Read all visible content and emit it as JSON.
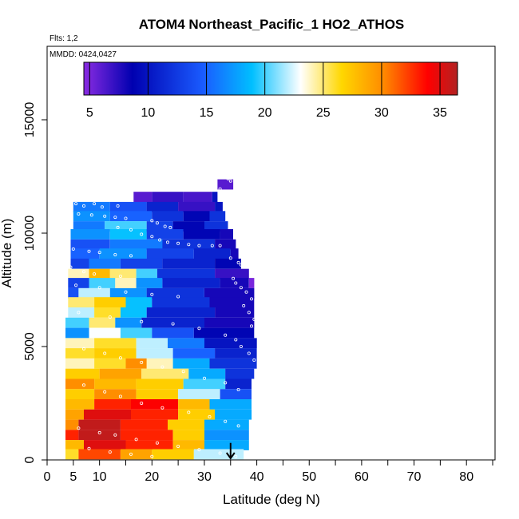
{
  "chart_data": {
    "type": "heatmap",
    "title": "ATOM4 Northeast_Pacific_1 HO2_ATHOS",
    "subtitle_flights": "Flts: 1,2",
    "subtitle_dates": "MMDD: 0424,0427",
    "xlabel": "Latitude (deg N)",
    "ylabel": "Altitude (m)",
    "xlim": [
      0,
      85
    ],
    "ylim": [
      0,
      17500
    ],
    "x_ticks": [
      0,
      5,
      10,
      20,
      30,
      40,
      50,
      60,
      70,
      80
    ],
    "y_ticks": [
      0,
      5000,
      10000,
      15000
    ],
    "x_minor_ticks": [
      15,
      25,
      35,
      45,
      55,
      65,
      75,
      85
    ],
    "colorbar": {
      "min": 4.5,
      "max": 36.5,
      "ticks": [
        5,
        10,
        15,
        20,
        25,
        30,
        35
      ],
      "colors": [
        "#8a2be2",
        "#0000b0",
        "#1a5cff",
        "#00bfff",
        "#ffffff",
        "#ffd700",
        "#ff8c00",
        "#ff0000",
        "#b22222"
      ]
    },
    "annotation": {
      "type": "arrow-down",
      "x": 35,
      "y_from": 750,
      "y_to": 0
    },
    "grid": false,
    "values_unit": "pptv",
    "rows": [
      {
        "alt": 12150,
        "segs": [
          [
            32.5,
            35.5,
            6
          ]
        ]
      },
      {
        "alt": 11600,
        "segs": [
          [
            16.5,
            20,
            6
          ],
          [
            20,
            26,
            7
          ],
          [
            26,
            31.5,
            6.5
          ],
          [
            31.5,
            32.5,
            10
          ]
        ]
      },
      {
        "alt": 11150,
        "segs": [
          [
            5,
            12,
            16
          ],
          [
            12,
            19,
            14
          ],
          [
            19,
            25,
            11
          ],
          [
            25,
            32,
            7
          ],
          [
            32,
            33.5,
            10
          ]
        ]
      },
      {
        "alt": 10750,
        "segs": [
          [
            5,
            12,
            17
          ],
          [
            12,
            20,
            15
          ],
          [
            20,
            26,
            12
          ],
          [
            26,
            31,
            9
          ],
          [
            31,
            34,
            12
          ]
        ]
      },
      {
        "alt": 10300,
        "segs": [
          [
            5,
            11,
            16
          ],
          [
            11,
            19,
            20
          ],
          [
            19,
            24,
            13
          ],
          [
            24,
            30,
            9
          ],
          [
            30,
            34.5,
            12
          ]
        ]
      },
      {
        "alt": 9950,
        "segs": [
          [
            4.5,
            12,
            17
          ],
          [
            12,
            19,
            19
          ],
          [
            19,
            26,
            13
          ],
          [
            26,
            33,
            9
          ],
          [
            33,
            35.5,
            8
          ]
        ]
      },
      {
        "alt": 9500,
        "segs": [
          [
            4.5,
            12,
            14
          ],
          [
            12,
            22,
            16
          ],
          [
            22,
            32,
            12
          ],
          [
            32,
            36,
            8
          ]
        ]
      },
      {
        "alt": 9100,
        "segs": [
          [
            4.5,
            10,
            15
          ],
          [
            10,
            19,
            17
          ],
          [
            19,
            28,
            13
          ],
          [
            28,
            35,
            11
          ],
          [
            35,
            36.5,
            8
          ]
        ]
      },
      {
        "alt": 8650,
        "segs": [
          [
            4.5,
            8,
            13
          ],
          [
            8,
            14,
            16
          ],
          [
            14,
            22,
            13
          ],
          [
            22,
            32,
            11
          ],
          [
            32,
            37,
            9
          ]
        ]
      },
      {
        "alt": 8200,
        "segs": [
          [
            4,
            8,
            24
          ],
          [
            8,
            12,
            28
          ],
          [
            12,
            17,
            25
          ],
          [
            17,
            21,
            20
          ],
          [
            21,
            32,
            12
          ],
          [
            32,
            38.5,
            7
          ]
        ]
      },
      {
        "alt": 7800,
        "segs": [
          [
            4,
            8,
            13
          ],
          [
            8,
            13,
            20
          ],
          [
            13,
            17,
            24
          ],
          [
            17,
            22,
            17
          ],
          [
            22,
            33,
            11
          ],
          [
            33,
            38.5,
            8
          ],
          [
            38.5,
            39.5,
            5
          ]
        ]
      },
      {
        "alt": 7350,
        "segs": [
          [
            4,
            6,
            14
          ],
          [
            6,
            12,
            22
          ],
          [
            12,
            19,
            17
          ],
          [
            19,
            30,
            12
          ],
          [
            30,
            39.5,
            8
          ]
        ]
      },
      {
        "alt": 6950,
        "segs": [
          [
            4,
            9,
            25
          ],
          [
            9,
            15,
            27
          ],
          [
            15,
            20,
            19
          ],
          [
            20,
            31,
            12
          ],
          [
            31,
            39.5,
            8
          ]
        ]
      },
      {
        "alt": 6500,
        "segs": [
          [
            4,
            9,
            22
          ],
          [
            9,
            14,
            26
          ],
          [
            14,
            19,
            19
          ],
          [
            19,
            32,
            11
          ],
          [
            32,
            39.5,
            8
          ]
        ]
      },
      {
        "alt": 6050,
        "segs": [
          [
            3.5,
            8,
            20
          ],
          [
            8,
            13,
            25
          ],
          [
            13,
            18,
            17
          ],
          [
            18,
            30,
            11
          ],
          [
            30,
            39.5,
            8
          ]
        ]
      },
      {
        "alt": 5600,
        "segs": [
          [
            3.5,
            8,
            17
          ],
          [
            8,
            14,
            23
          ],
          [
            14,
            20,
            20
          ],
          [
            20,
            28,
            14
          ],
          [
            28,
            39.5,
            9
          ]
        ]
      },
      {
        "alt": 5150,
        "segs": [
          [
            3.5,
            9,
            24
          ],
          [
            9,
            17,
            26
          ],
          [
            17,
            23,
            22
          ],
          [
            23,
            30,
            16
          ],
          [
            30,
            40,
            10
          ]
        ]
      },
      {
        "alt": 4700,
        "segs": [
          [
            3.5,
            9,
            26
          ],
          [
            9,
            17,
            27
          ],
          [
            17,
            24,
            22
          ],
          [
            24,
            32,
            15
          ],
          [
            32,
            40,
            11
          ]
        ]
      },
      {
        "alt": 4250,
        "segs": [
          [
            3.5,
            9,
            24
          ],
          [
            9,
            15,
            26
          ],
          [
            15,
            19,
            30
          ],
          [
            19,
            24,
            24
          ],
          [
            24,
            31,
            18
          ],
          [
            31,
            40,
            12
          ]
        ]
      },
      {
        "alt": 3800,
        "segs": [
          [
            3.5,
            10,
            27
          ],
          [
            10,
            18,
            29
          ],
          [
            18,
            27,
            25
          ],
          [
            27,
            34,
            18
          ],
          [
            34,
            39.5,
            12
          ]
        ]
      },
      {
        "alt": 3350,
        "segs": [
          [
            3.5,
            9,
            30
          ],
          [
            9,
            17,
            28
          ],
          [
            17,
            26,
            27
          ],
          [
            26,
            34,
            20
          ],
          [
            34,
            39,
            11
          ]
        ]
      },
      {
        "alt": 2900,
        "segs": [
          [
            3.5,
            9,
            27
          ],
          [
            9,
            17,
            30
          ],
          [
            17,
            25,
            27
          ],
          [
            25,
            33,
            22
          ],
          [
            33,
            39,
            14
          ]
        ]
      },
      {
        "alt": 2450,
        "segs": [
          [
            3.5,
            9,
            28
          ],
          [
            9,
            16,
            33
          ],
          [
            16,
            25,
            34
          ],
          [
            25,
            31,
            28
          ],
          [
            31,
            39,
            18
          ]
        ]
      },
      {
        "alt": 2000,
        "segs": [
          [
            3.5,
            7,
            29
          ],
          [
            7,
            16,
            35
          ],
          [
            16,
            25,
            33
          ],
          [
            25,
            32,
            27
          ],
          [
            32,
            39,
            18
          ]
        ]
      },
      {
        "alt": 1550,
        "segs": [
          [
            3.5,
            6,
            30
          ],
          [
            6,
            14,
            36
          ],
          [
            14,
            23,
            33
          ],
          [
            23,
            30,
            27
          ],
          [
            30,
            38.5,
            18
          ]
        ]
      },
      {
        "alt": 1100,
        "segs": [
          [
            3.5,
            6,
            33
          ],
          [
            6,
            14,
            36
          ],
          [
            14,
            24,
            33
          ],
          [
            24,
            30,
            27
          ],
          [
            30,
            38.5,
            17
          ]
        ]
      },
      {
        "alt": 650,
        "segs": [
          [
            3.5,
            7,
            28
          ],
          [
            7,
            15,
            35
          ],
          [
            15,
            24,
            33
          ],
          [
            24,
            30,
            28
          ],
          [
            30,
            38.5,
            18
          ]
        ]
      },
      {
        "alt": 250,
        "segs": [
          [
            3.5,
            6,
            26
          ],
          [
            6,
            14,
            32
          ],
          [
            14,
            20,
            29
          ],
          [
            20,
            28,
            27
          ],
          [
            28,
            37.5,
            22
          ]
        ]
      }
    ],
    "track_points": [
      [
        32.5,
        12450
      ],
      [
        34.5,
        12400
      ],
      [
        35,
        12300
      ],
      [
        33,
        11950
      ],
      [
        35,
        11850
      ],
      [
        36.5,
        11300
      ],
      [
        5.5,
        11300
      ],
      [
        7,
        11200
      ],
      [
        9,
        11300
      ],
      [
        10.5,
        11150
      ],
      [
        13.5,
        11200
      ],
      [
        6,
        10850
      ],
      [
        8.5,
        10800
      ],
      [
        11,
        10750
      ],
      [
        13,
        10700
      ],
      [
        15,
        10650
      ],
      [
        20,
        10550
      ],
      [
        21,
        10450
      ],
      [
        22.5,
        10300
      ],
      [
        23.5,
        10250
      ],
      [
        13.5,
        10250
      ],
      [
        16,
        10150
      ],
      [
        18,
        9950
      ],
      [
        20,
        9850
      ],
      [
        21.5,
        9700
      ],
      [
        23,
        9600
      ],
      [
        25,
        9550
      ],
      [
        27,
        9500
      ],
      [
        29,
        9450
      ],
      [
        31.5,
        9450
      ],
      [
        33,
        9450
      ],
      [
        5,
        9300
      ],
      [
        8,
        9200
      ],
      [
        10,
        9150
      ],
      [
        13,
        9050
      ],
      [
        16,
        9000
      ],
      [
        35,
        8900
      ],
      [
        36.5,
        8700
      ],
      [
        37,
        8600
      ],
      [
        4.5,
        8500
      ],
      [
        7,
        8300
      ],
      [
        9,
        8200
      ],
      [
        14,
        8100
      ],
      [
        35.5,
        8000
      ],
      [
        36,
        7800
      ],
      [
        37,
        7600
      ],
      [
        38,
        7400
      ],
      [
        39,
        7100
      ],
      [
        5.5,
        7700
      ],
      [
        10,
        7600
      ],
      [
        15,
        7400
      ],
      [
        20,
        7300
      ],
      [
        25,
        7200
      ],
      [
        37.5,
        6800
      ],
      [
        38.5,
        6500
      ],
      [
        39.5,
        6200
      ],
      [
        39,
        5900
      ],
      [
        6,
        6500
      ],
      [
        12,
        6300
      ],
      [
        18,
        6100
      ],
      [
        24,
        6000
      ],
      [
        29,
        5800
      ],
      [
        34,
        5500
      ],
      [
        36,
        5300
      ],
      [
        37,
        5000
      ],
      [
        38.5,
        4700
      ],
      [
        39.5,
        4400
      ],
      [
        7,
        4900
      ],
      [
        11,
        4700
      ],
      [
        14,
        4500
      ],
      [
        18,
        4300
      ],
      [
        22,
        4100
      ],
      [
        26,
        3900
      ],
      [
        30,
        3600
      ],
      [
        34,
        3400
      ],
      [
        36.5,
        3100
      ],
      [
        7,
        3300
      ],
      [
        11,
        3000
      ],
      [
        14,
        2800
      ],
      [
        18,
        2500
      ],
      [
        22,
        2300
      ],
      [
        27,
        2100
      ],
      [
        31,
        1900
      ],
      [
        34,
        1700
      ],
      [
        36.5,
        1500
      ],
      [
        6,
        1400
      ],
      [
        10,
        1200
      ],
      [
        13,
        1100
      ],
      [
        17,
        900
      ],
      [
        21,
        750
      ],
      [
        25,
        600
      ],
      [
        29,
        450
      ],
      [
        33,
        300
      ],
      [
        36,
        150
      ],
      [
        8,
        500
      ],
      [
        12,
        350
      ],
      [
        16,
        250
      ],
      [
        20,
        150
      ]
    ]
  }
}
